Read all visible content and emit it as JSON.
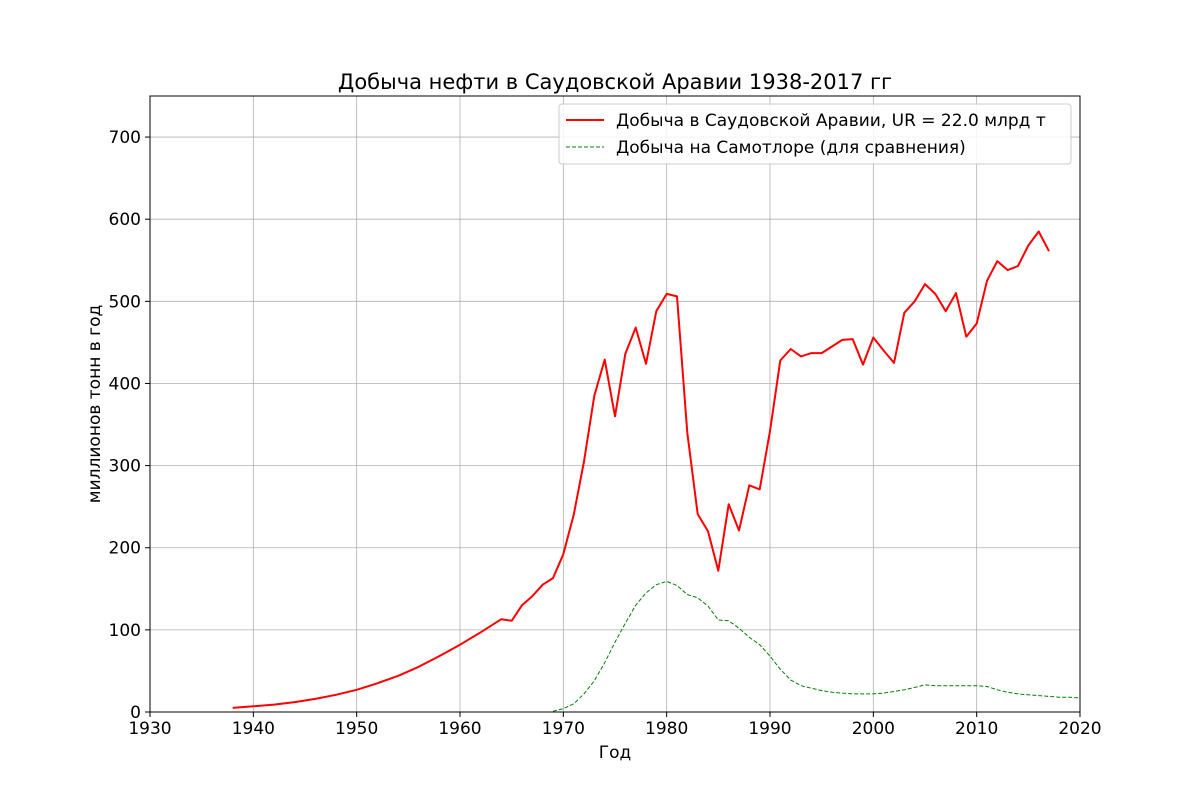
{
  "chart_data": {
    "type": "line",
    "title": "Добыча нефти в Саудовской Аравии 1938-2017 гг",
    "xlabel": "Год",
    "ylabel": "миллионов тонн в год",
    "xlim": [
      1930,
      2020
    ],
    "ylim": [
      0,
      750
    ],
    "xticks": [
      1930,
      1940,
      1950,
      1960,
      1970,
      1980,
      1990,
      2000,
      2010,
      2020
    ],
    "yticks": [
      0,
      100,
      200,
      300,
      400,
      500,
      600,
      700
    ],
    "grid": true,
    "legend_position": "top-right",
    "series": [
      {
        "name": "Добыча в Саудовской Аравии, UR = 22.0 млрд т",
        "color": "#ff0000",
        "style": "solid",
        "points": [
          [
            1938,
            5
          ],
          [
            1940,
            7
          ],
          [
            1942,
            9
          ],
          [
            1944,
            12
          ],
          [
            1946,
            16
          ],
          [
            1948,
            21
          ],
          [
            1950,
            27
          ],
          [
            1952,
            35
          ],
          [
            1954,
            44
          ],
          [
            1956,
            55
          ],
          [
            1958,
            68
          ],
          [
            1960,
            82
          ],
          [
            1962,
            97
          ],
          [
            1964,
            113
          ],
          [
            1965,
            111
          ],
          [
            1966,
            130
          ],
          [
            1967,
            141
          ],
          [
            1968,
            155
          ],
          [
            1969,
            163
          ],
          [
            1970,
            192
          ],
          [
            1971,
            240
          ],
          [
            1972,
            305
          ],
          [
            1973,
            385
          ],
          [
            1974,
            429
          ],
          [
            1975,
            360
          ],
          [
            1976,
            436
          ],
          [
            1977,
            468
          ],
          [
            1978,
            424
          ],
          [
            1979,
            488
          ],
          [
            1980,
            509
          ],
          [
            1981,
            506
          ],
          [
            1982,
            340
          ],
          [
            1983,
            241
          ],
          [
            1984,
            220
          ],
          [
            1985,
            172
          ],
          [
            1986,
            253
          ],
          [
            1987,
            221
          ],
          [
            1988,
            276
          ],
          [
            1989,
            271
          ],
          [
            1990,
            342
          ],
          [
            1991,
            428
          ],
          [
            1992,
            442
          ],
          [
            1993,
            433
          ],
          [
            1994,
            437
          ],
          [
            1995,
            437
          ],
          [
            1996,
            445
          ],
          [
            1997,
            453
          ],
          [
            1998,
            454
          ],
          [
            1999,
            423
          ],
          [
            2000,
            456
          ],
          [
            2001,
            440
          ],
          [
            2002,
            425
          ],
          [
            2003,
            486
          ],
          [
            2004,
            500
          ],
          [
            2005,
            521
          ],
          [
            2006,
            509
          ],
          [
            2007,
            488
          ],
          [
            2008,
            510
          ],
          [
            2009,
            457
          ],
          [
            2010,
            473
          ],
          [
            2011,
            525
          ],
          [
            2012,
            549
          ],
          [
            2013,
            538
          ],
          [
            2014,
            543
          ],
          [
            2015,
            568
          ],
          [
            2016,
            585
          ],
          [
            2017,
            561
          ]
        ]
      },
      {
        "name": "Добыча на Самотлоре (для сравнения)",
        "color": "#008000",
        "style": "dashed",
        "points": [
          [
            1969,
            1
          ],
          [
            1970,
            4
          ],
          [
            1971,
            10
          ],
          [
            1972,
            22
          ],
          [
            1973,
            38
          ],
          [
            1974,
            60
          ],
          [
            1975,
            85
          ],
          [
            1976,
            108
          ],
          [
            1977,
            130
          ],
          [
            1978,
            145
          ],
          [
            1979,
            155
          ],
          [
            1980,
            159
          ],
          [
            1981,
            154
          ],
          [
            1982,
            143
          ],
          [
            1983,
            139
          ],
          [
            1984,
            129
          ],
          [
            1985,
            112
          ],
          [
            1986,
            111
          ],
          [
            1987,
            102
          ],
          [
            1988,
            91
          ],
          [
            1989,
            82
          ],
          [
            1990,
            68
          ],
          [
            1991,
            52
          ],
          [
            1992,
            39
          ],
          [
            1993,
            32
          ],
          [
            1994,
            29
          ],
          [
            1995,
            26
          ],
          [
            1996,
            24
          ],
          [
            1997,
            23
          ],
          [
            1998,
            22
          ],
          [
            1999,
            22
          ],
          [
            2000,
            22
          ],
          [
            2001,
            23
          ],
          [
            2002,
            25
          ],
          [
            2003,
            27
          ],
          [
            2004,
            30
          ],
          [
            2005,
            33
          ],
          [
            2006,
            32
          ],
          [
            2007,
            32
          ],
          [
            2008,
            32
          ],
          [
            2009,
            32
          ],
          [
            2010,
            32
          ],
          [
            2011,
            31
          ],
          [
            2012,
            27
          ],
          [
            2013,
            24
          ],
          [
            2014,
            22
          ],
          [
            2015,
            21
          ],
          [
            2016,
            20
          ],
          [
            2017,
            19
          ],
          [
            2018,
            18
          ],
          [
            2019,
            18
          ],
          [
            2020,
            17
          ]
        ]
      }
    ]
  }
}
